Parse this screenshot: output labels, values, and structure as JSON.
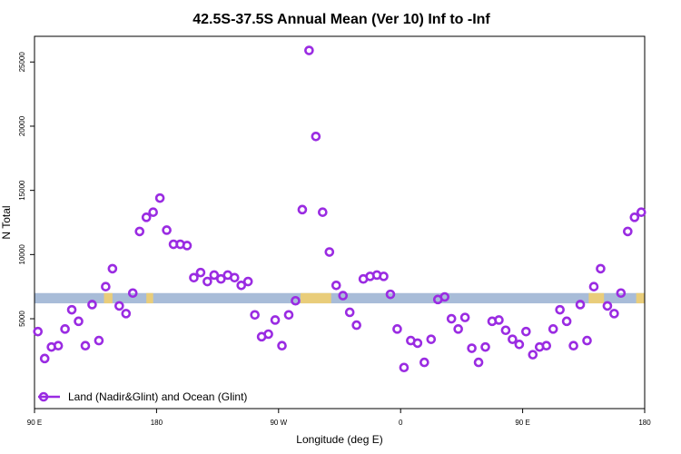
{
  "chart_data": {
    "type": "scatter",
    "title": "42.5S-37.5S Annual Mean (Ver 10)   Inf to -Inf",
    "xlabel": "Longitude (deg E)",
    "ylabel": "N Total",
    "xlim": [
      0,
      360
    ],
    "ylim": [
      -2000,
      27000
    ],
    "x_ticks": [
      {
        "value": 0,
        "label": "90 E"
      },
      {
        "value": 72,
        "label": "180"
      },
      {
        "value": 144,
        "label": "90 W"
      },
      {
        "value": 216,
        "label": "0"
      },
      {
        "value": 288,
        "label": "90 E"
      },
      {
        "value": 360,
        "label": "180"
      }
    ],
    "y_ticks": [
      {
        "value": 5000,
        "label": "5000"
      },
      {
        "value": 10000,
        "label": "10000"
      },
      {
        "value": 15000,
        "label": "15000"
      },
      {
        "value": 20000,
        "label": "20000"
      },
      {
        "value": 25000,
        "label": "25000"
      }
    ],
    "band": {
      "y_low": 6200,
      "y_high": 7000,
      "color": "#a8bcd8",
      "accent_color": "#f5d06a"
    },
    "accent_segments": [
      [
        41,
        46
      ],
      [
        66,
        70
      ],
      [
        157,
        175
      ],
      [
        327,
        336
      ],
      [
        355,
        360
      ]
    ],
    "series": [
      {
        "name": "Land (Nadir&Glint) and Ocean (Glint)",
        "color": "#9a2be2",
        "x": [
          2,
          6,
          10,
          14,
          18,
          22,
          26,
          30,
          34,
          38,
          42,
          46,
          50,
          54,
          58,
          62,
          66,
          70,
          74,
          78,
          82,
          86,
          90,
          94,
          98,
          102,
          106,
          110,
          114,
          118,
          122,
          126,
          130,
          134,
          138,
          142,
          146,
          150,
          154,
          158,
          162,
          166,
          170,
          174,
          178,
          182,
          186,
          190,
          194,
          198,
          202,
          206,
          210,
          214,
          218,
          222,
          226,
          230,
          234,
          238,
          242,
          246,
          250,
          254,
          258,
          262,
          266,
          270,
          274,
          278,
          282,
          286,
          290,
          294,
          298,
          302,
          306,
          310,
          314,
          318,
          322,
          326,
          330,
          334,
          338,
          342,
          346,
          350,
          354,
          358
        ],
        "y": [
          4000,
          1900,
          2800,
          2900,
          4200,
          5700,
          4800,
          2900,
          6100,
          3300,
          7500,
          8900,
          6000,
          5400,
          7000,
          11800,
          12900,
          13300,
          14400,
          11900,
          10800,
          10800,
          10700,
          8200,
          8600,
          7900,
          8400,
          8100,
          8400,
          8200,
          7600,
          7900,
          5300,
          3600,
          3800,
          4900,
          2900,
          5300,
          6400,
          13500,
          25900,
          19200,
          13300,
          10200,
          7600,
          6800,
          5500,
          4500,
          8100,
          8300,
          8400,
          8300,
          6900,
          4200,
          1200,
          3300,
          3100,
          1600,
          3400,
          6500,
          6700,
          5000,
          4200,
          5100,
          2700,
          1600,
          2800,
          4800,
          4900,
          4100,
          3400,
          3000,
          4000,
          2200,
          2800,
          2900,
          4200,
          5700,
          4800,
          2900,
          6100,
          3300,
          7500,
          8900,
          6000,
          5400,
          7000,
          11800,
          12900,
          13300
        ]
      }
    ],
    "legend": {
      "position": "bottom-left",
      "entries": [
        "Land (Nadir&Glint) and Ocean (Glint)"
      ]
    },
    "grid": false
  }
}
